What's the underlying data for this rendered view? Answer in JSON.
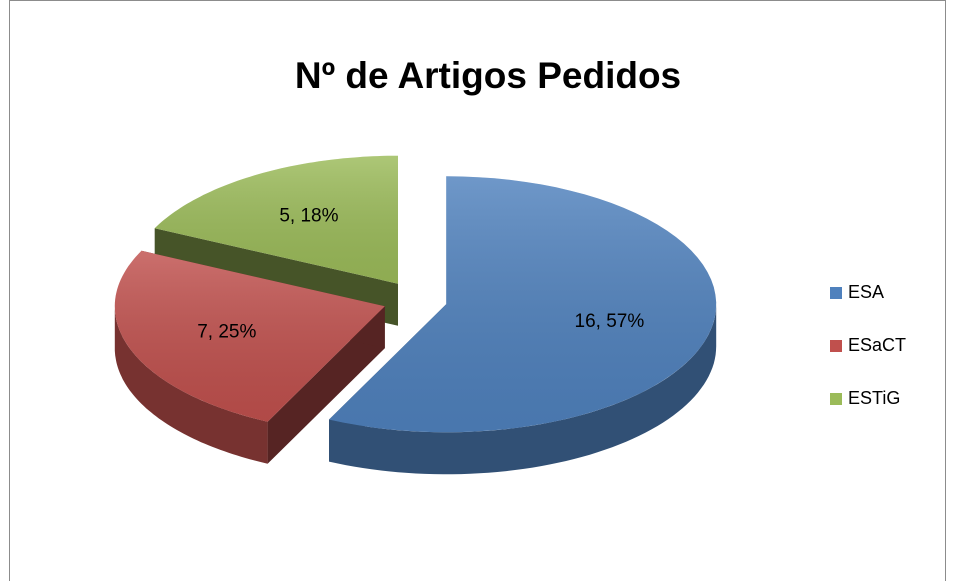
{
  "chart_data": {
    "type": "pie",
    "title": "Nº de Artigos Pedidos",
    "categories": [
      "ESA",
      "ESaCT",
      "ESTiG"
    ],
    "values": [
      16,
      7,
      5
    ],
    "value_labels": [
      "16, 57%",
      "7, 25%",
      "5, 18%"
    ],
    "colors": [
      "#4f81bd",
      "#c0504d",
      "#9bbb59"
    ],
    "legend": "right"
  }
}
